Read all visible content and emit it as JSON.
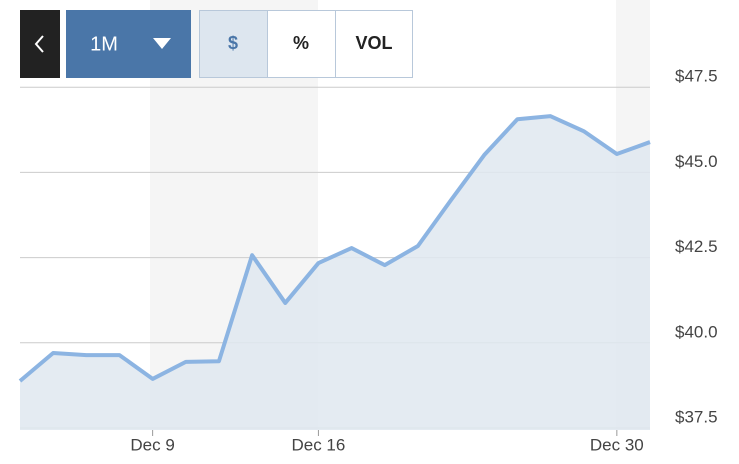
{
  "ui": {
    "range_button": "1M",
    "dollar_button": "$",
    "percent_button": "%",
    "volume_button": "VOL"
  },
  "chart_data": {
    "type": "area",
    "categories": [
      null,
      null,
      null,
      null,
      "Dec 9",
      null,
      null,
      null,
      null,
      "Dec 16",
      null,
      null,
      null,
      null,
      null,
      null,
      null,
      null,
      "Dec 30",
      null
    ],
    "values": [
      38.88,
      39.7,
      39.64,
      39.64,
      38.94,
      39.44,
      39.46,
      42.57,
      41.17,
      42.34,
      42.78,
      42.28,
      42.84,
      44.19,
      45.51,
      46.56,
      46.65,
      46.21,
      45.54,
      45.89
    ],
    "color": "#8cb4e2",
    "ylim": [
      37.5,
      50
    ],
    "yticks": [
      {
        "value": 37.5,
        "label": "$37.5"
      },
      {
        "value": 40,
        "label": "$40.0"
      },
      {
        "value": 42.5,
        "label": "$42.5"
      },
      {
        "value": 45,
        "label": "$45.0"
      },
      {
        "value": 47.5,
        "label": "$47.5"
      }
    ],
    "grid": true
  }
}
